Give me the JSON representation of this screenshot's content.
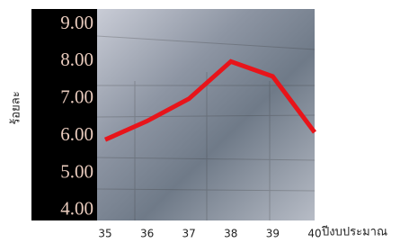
{
  "chart_data": {
    "type": "line",
    "x": [
      35,
      36,
      37,
      38,
      39,
      40
    ],
    "values": [
      5.9,
      6.4,
      7.0,
      8.0,
      7.6,
      6.1
    ],
    "color": "#e8141a",
    "xlim": [
      35,
      40
    ],
    "xticks": [
      35,
      36,
      37,
      38,
      39,
      40
    ],
    "ylim": [
      3.73,
      9.41
    ],
    "yticks": [
      {
        "value": 4,
        "label": "4.00"
      },
      {
        "value": 5,
        "label": "5.00"
      },
      {
        "value": 6,
        "label": "6.00"
      },
      {
        "value": 7,
        "label": "7.00"
      },
      {
        "value": 8,
        "label": "8.00"
      },
      {
        "value": 9,
        "label": "9.00"
      }
    ],
    "xlabel": "ปีงบประมาณ",
    "ylabel": "ร้อยละ"
  }
}
